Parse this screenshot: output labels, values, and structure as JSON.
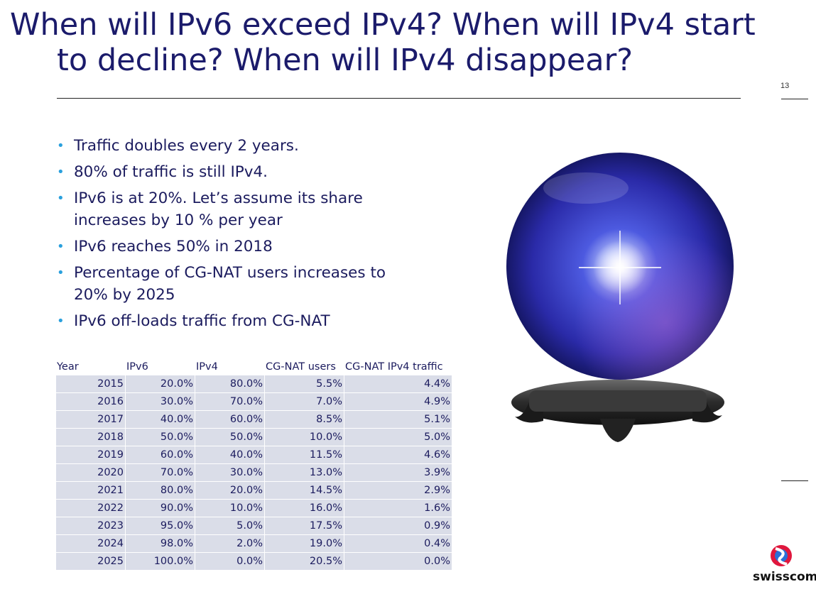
{
  "slide": {
    "title_line1": "When will IPv6 exceed IPv4? When will IPv4 start",
    "title_line2": "to decline? When will IPv4 disappear?",
    "page_number": "13"
  },
  "bullets": [
    "Traffic doubles every 2 years.",
    "80% of traffic is still IPv4.",
    "IPv6 is at 20%. Let’s assume its share increases by 10 % per year",
    "IPv6 reaches 50% in 2018",
    "Percentage of CG-NAT users increases to 20% by 2025",
    "IPv6 off-loads traffic from CG-NAT"
  ],
  "table": {
    "headers": [
      "Year",
      "IPv6",
      "IPv4",
      "CG-NAT users",
      "CG-NAT IPv4 traffic"
    ],
    "rows": [
      [
        "2015",
        "20.0%",
        "80.0%",
        "5.5%",
        "4.4%"
      ],
      [
        "2016",
        "30.0%",
        "70.0%",
        "7.0%",
        "4.9%"
      ],
      [
        "2017",
        "40.0%",
        "60.0%",
        "8.5%",
        "5.1%"
      ],
      [
        "2018",
        "50.0%",
        "50.0%",
        "10.0%",
        "5.0%"
      ],
      [
        "2019",
        "60.0%",
        "40.0%",
        "11.5%",
        "4.6%"
      ],
      [
        "2020",
        "70.0%",
        "30.0%",
        "13.0%",
        "3.9%"
      ],
      [
        "2021",
        "80.0%",
        "20.0%",
        "14.5%",
        "2.9%"
      ],
      [
        "2022",
        "90.0%",
        "10.0%",
        "16.0%",
        "1.6%"
      ],
      [
        "2023",
        "95.0%",
        "5.0%",
        "17.5%",
        "0.9%"
      ],
      [
        "2024",
        "98.0%",
        "2.0%",
        "19.0%",
        "0.4%"
      ],
      [
        "2025",
        "100.0%",
        "0.0%",
        "20.5%",
        "0.0%"
      ]
    ]
  },
  "logo": {
    "text": "swisscom"
  },
  "colors": {
    "title": "#1b1b6b",
    "bullet_dot": "#2aa0dd",
    "table_cell_bg": "#dadde8",
    "globe_blue": "#3b3fd0"
  }
}
